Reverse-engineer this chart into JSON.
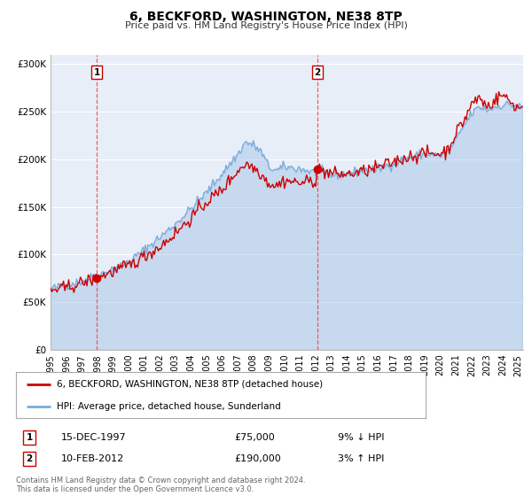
{
  "title": "6, BECKFORD, WASHINGTON, NE38 8TP",
  "subtitle": "Price paid vs. HM Land Registry's House Price Index (HPI)",
  "background_color": "#ffffff",
  "plot_bg_color": "#e8eef8",
  "ylim": [
    0,
    310000
  ],
  "xlim_start": 1995.0,
  "xlim_end": 2025.3,
  "yticks": [
    0,
    50000,
    100000,
    150000,
    200000,
    250000,
    300000
  ],
  "ytick_labels": [
    "£0",
    "£50K",
    "£100K",
    "£150K",
    "£200K",
    "£250K",
    "£300K"
  ],
  "xtick_years": [
    1995,
    1996,
    1997,
    1998,
    1999,
    2000,
    2001,
    2002,
    2003,
    2004,
    2005,
    2006,
    2007,
    2008,
    2009,
    2010,
    2011,
    2012,
    2013,
    2014,
    2015,
    2016,
    2017,
    2018,
    2019,
    2020,
    2021,
    2022,
    2023,
    2024,
    2025
  ],
  "sale1_x": 1997.96,
  "sale1_y": 75000,
  "sale2_x": 2012.11,
  "sale2_y": 190000,
  "vline1_x": 1997.96,
  "vline2_x": 2012.11,
  "legend_label_red": "6, BECKFORD, WASHINGTON, NE38 8TP (detached house)",
  "legend_label_blue": "HPI: Average price, detached house, Sunderland",
  "table_row1": [
    "1",
    "15-DEC-1997",
    "£75,000",
    "9% ↓ HPI"
  ],
  "table_row2": [
    "2",
    "10-FEB-2012",
    "£190,000",
    "3% ↑ HPI"
  ],
  "footer": "Contains HM Land Registry data © Crown copyright and database right 2024.\nThis data is licensed under the Open Government Licence v3.0.",
  "red_color": "#cc0000",
  "blue_color": "#7aabdb",
  "grid_color": "#ffffff",
  "vline_color": "#ee4444",
  "title_fontsize": 10,
  "subtitle_fontsize": 8
}
